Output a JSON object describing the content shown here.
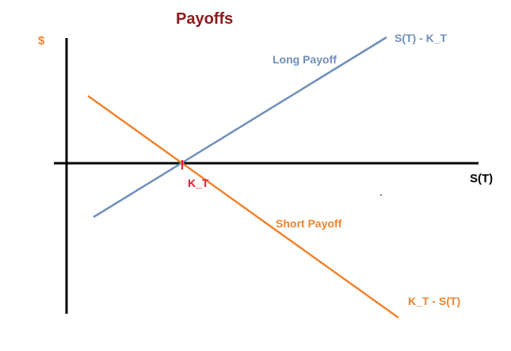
{
  "chart_data": {
    "type": "line",
    "title": "Payoffs",
    "ylabel": "$",
    "xlabel": "S(T)",
    "strike_label": "K_T",
    "grid": false,
    "series": [
      {
        "name": "Long Payoff",
        "end_label": "S(T) - K_T",
        "color": "#6e8fba",
        "slope": 1
      },
      {
        "name": "Short Payoff",
        "end_label": "K_T - S(T)",
        "color": "#f0832f",
        "slope": -1
      }
    ]
  },
  "colors": {
    "title": "#8b1a1a",
    "dollar": "#f0832f",
    "axis": "#000000",
    "strike": "#e0202e"
  }
}
